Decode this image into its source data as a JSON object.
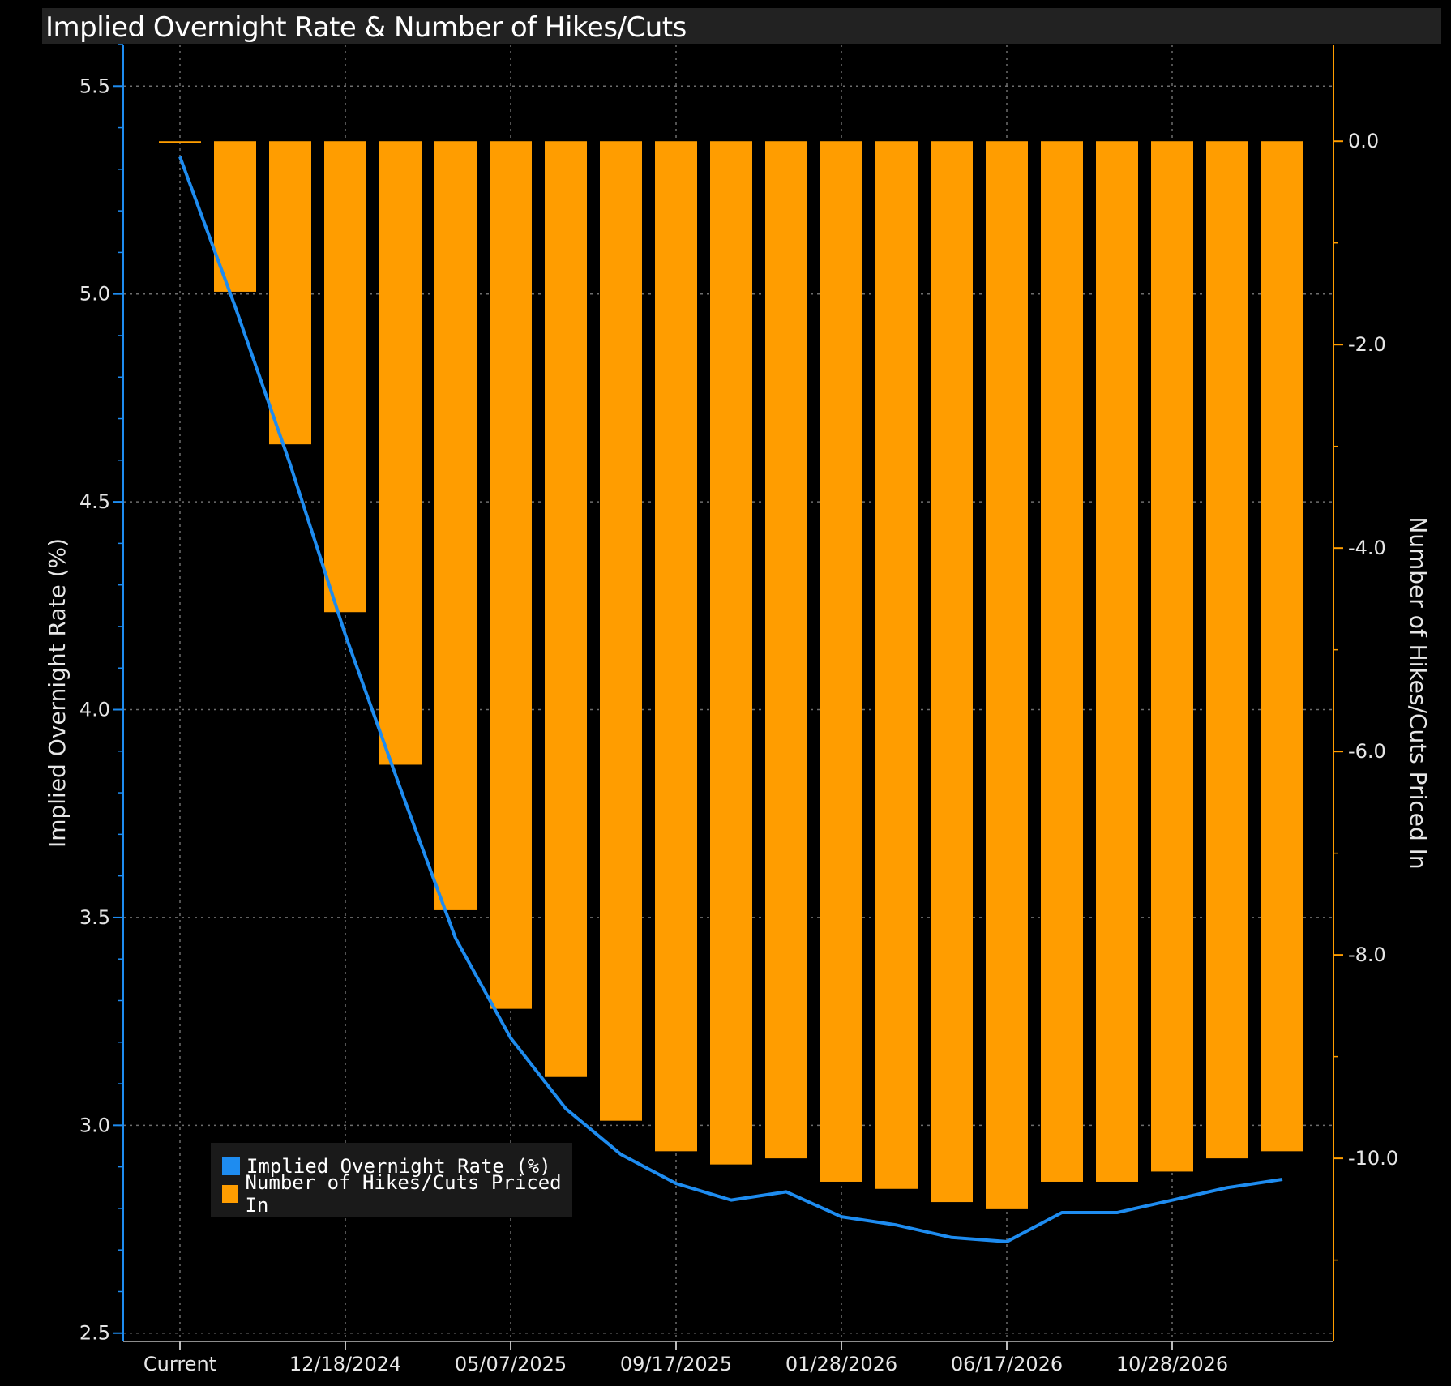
{
  "title": "Implied Overnight Rate & Number of Hikes/Cuts",
  "colors": {
    "background": "#000000",
    "rate_line": "#1e8cf0",
    "bars": "#ff9d00",
    "grid": "#6e6e6e"
  },
  "legend": {
    "items": [
      {
        "label": "Implied Overnight Rate (%)",
        "color": "#1e8cf0"
      },
      {
        "label": "Number of Hikes/Cuts Priced In",
        "color": "#ff9d00"
      }
    ]
  },
  "chart_data": {
    "type": "bar",
    "title": "Implied Overnight Rate & Number of Hikes/Cuts",
    "x_tick_labels": [
      "Current",
      "12/18/2024",
      "05/07/2025",
      "09/17/2025",
      "01/28/2026",
      "06/17/2026",
      "10/28/2026"
    ],
    "y_left": {
      "label": "Implied Overnight Rate (%)",
      "ylim": [
        2.48,
        5.6
      ],
      "ticks": [
        "5.5",
        "5.0",
        "4.5",
        "4.0",
        "3.5",
        "3.0",
        "2.5"
      ]
    },
    "y_right": {
      "label": "Number of Hikes/Cuts Priced In",
      "ylim": [
        -11.8,
        0.95
      ],
      "ticks": [
        "0.0",
        "-2.0",
        "-4.0",
        "-6.0",
        "-8.0",
        "-10.0"
      ]
    },
    "grid": true,
    "legend_position": "bottom-left",
    "series": [
      {
        "name": "Implied Overnight Rate (%)",
        "type": "line",
        "axis": "left",
        "values": [
          5.33,
          4.97,
          4.59,
          4.18,
          3.81,
          3.45,
          3.21,
          3.04,
          2.93,
          2.86,
          2.82,
          2.84,
          2.78,
          2.76,
          2.73,
          2.72,
          2.79,
          2.79,
          2.82,
          2.85,
          2.87
        ]
      },
      {
        "name": "Number of Hikes/Cuts Priced In",
        "type": "bar",
        "axis": "right",
        "values": [
          0.0,
          -1.48,
          -2.98,
          -4.63,
          -6.13,
          -7.56,
          -8.53,
          -9.2,
          -9.63,
          -9.93,
          -10.06,
          -10.0,
          -10.23,
          -10.3,
          -10.43,
          -10.5,
          -10.23,
          -10.23,
          -10.13,
          -10.0,
          -9.93
        ]
      }
    ]
  }
}
